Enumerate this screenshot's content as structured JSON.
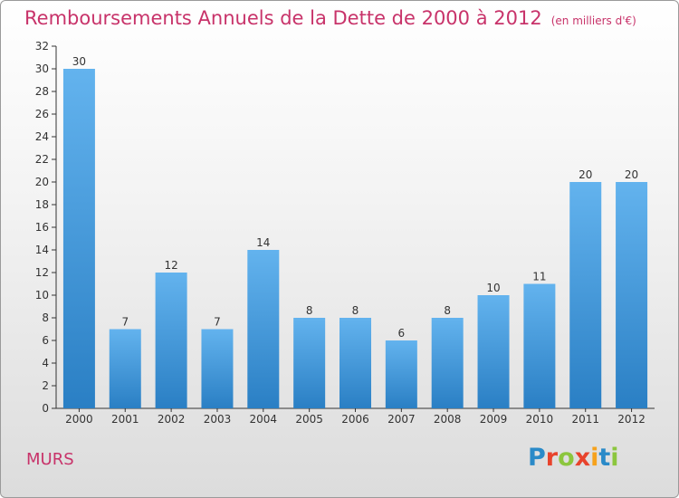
{
  "header": {
    "title": "Remboursements Annuels de la Dette de 2000 à 2012",
    "unit_note": "(en milliers d'€)"
  },
  "footer": {
    "city": "MURS",
    "logo_letters": [
      "P",
      "r",
      "o",
      "x",
      "i",
      "t",
      "i"
    ],
    "logo_colors": [
      "#2a8ac8",
      "#e8432c",
      "#8cc63e",
      "#e8432c",
      "#f6a21c",
      "#2a8ac8",
      "#8cc63e"
    ]
  },
  "colors": {
    "bar_light": "#63b3ee",
    "bar_dark": "#2a7fc4",
    "axis": "#333333",
    "accent": "#c8336a"
  },
  "chart_data": {
    "type": "bar",
    "categories": [
      "2000",
      "2001",
      "2002",
      "2003",
      "2004",
      "2005",
      "2006",
      "2007",
      "2008",
      "2009",
      "2010",
      "2011",
      "2012"
    ],
    "values": [
      30,
      7,
      12,
      7,
      14,
      8,
      8,
      6,
      8,
      10,
      11,
      20,
      20
    ],
    "title": "Remboursements Annuels de la Dette de 2000 à 2012",
    "xlabel": "",
    "ylabel": "",
    "ylim": [
      0,
      32
    ],
    "yticks": [
      0,
      2,
      4,
      6,
      8,
      10,
      12,
      14,
      16,
      18,
      20,
      22,
      24,
      26,
      28,
      30,
      32
    ],
    "grid": false,
    "data_labels": true
  }
}
